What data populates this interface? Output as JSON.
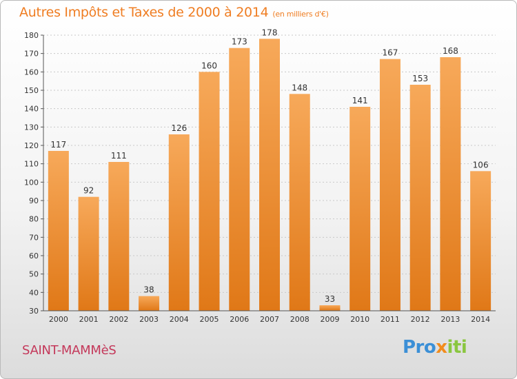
{
  "title": "Autres Impôts et Taxes de 2000 à 2014",
  "unit": "(en milliers d'€)",
  "place": "SAINT-MAMMèS",
  "logo": {
    "part1": "Pro",
    "part2": "x",
    "part3": "iti"
  },
  "colors": {
    "bar": "#ef8a2a",
    "bar_light": "#f7a95a",
    "title": "#ef7d22",
    "place": "#c4385a"
  },
  "chart_data": {
    "type": "bar",
    "categories": [
      "2000",
      "2001",
      "2002",
      "2003",
      "2004",
      "2005",
      "2006",
      "2007",
      "2008",
      "2009",
      "2010",
      "2011",
      "2012",
      "2013",
      "2014"
    ],
    "values": [
      117,
      92,
      111,
      38,
      126,
      160,
      173,
      178,
      148,
      33,
      141,
      167,
      153,
      168,
      106
    ],
    "ylim": [
      30,
      180
    ],
    "yticks": [
      30,
      40,
      50,
      60,
      70,
      80,
      90,
      100,
      110,
      120,
      130,
      140,
      150,
      160,
      170,
      180
    ],
    "grid": true
  }
}
